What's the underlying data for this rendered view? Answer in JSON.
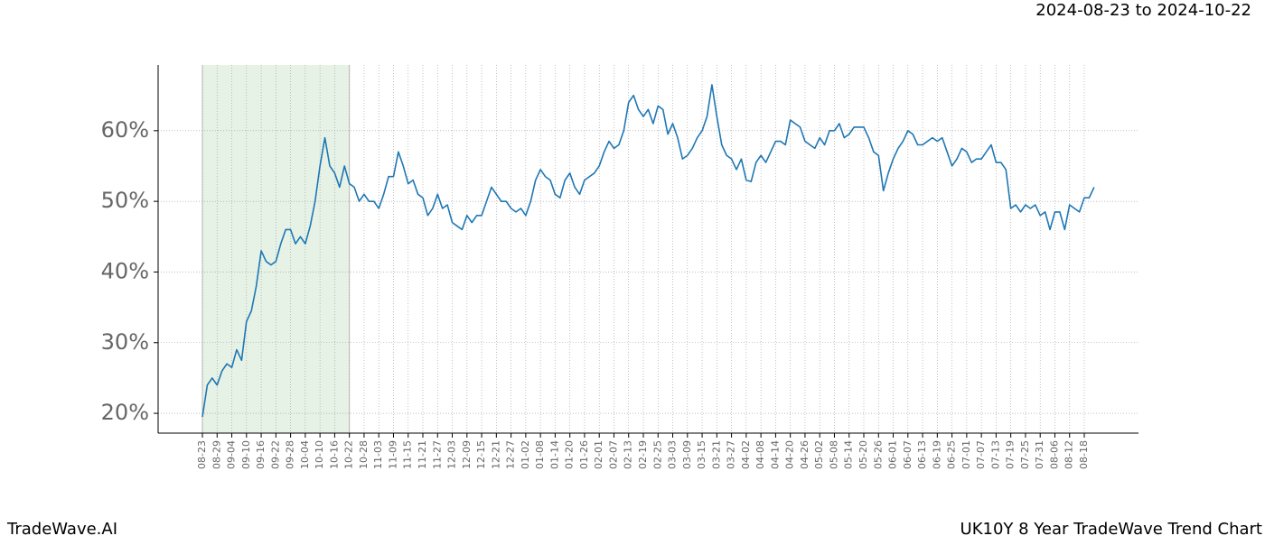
{
  "chart_data": {
    "type": "line",
    "title": "UK10Y 8 Year TradeWave Trend Chart",
    "date_range": "2024-08-23 to 2024-10-22",
    "brand": "TradeWave.AI",
    "color": "#1f77b4",
    "highlight_color": "#e6f2e6",
    "grid": true,
    "ylim": [
      17.2,
      69.3
    ],
    "yticks": [
      {
        "value": 20,
        "label": "20%"
      },
      {
        "value": 30,
        "label": "30%"
      },
      {
        "value": 40,
        "label": "40%"
      },
      {
        "value": 50,
        "label": "50%"
      },
      {
        "value": 60,
        "label": "60%"
      }
    ],
    "categories": [
      "08-23",
      null,
      null,
      "08-29",
      null,
      null,
      "09-04",
      null,
      null,
      "09-10",
      null,
      null,
      "09-16",
      null,
      null,
      "09-22",
      null,
      null,
      "09-28",
      null,
      null,
      "10-04",
      null,
      null,
      "10-10",
      null,
      null,
      "10-16",
      null,
      null,
      "10-22",
      null,
      null,
      "10-28",
      null,
      null,
      "11-03",
      null,
      null,
      "11-09",
      null,
      null,
      "11-15",
      null,
      null,
      "11-21",
      null,
      null,
      "11-27",
      null,
      null,
      "12-03",
      null,
      null,
      "12-09",
      null,
      null,
      "12-15",
      null,
      null,
      "12-21",
      null,
      null,
      "12-27",
      null,
      null,
      "01-02",
      null,
      null,
      "01-08",
      null,
      null,
      "01-14",
      null,
      null,
      "01-20",
      null,
      null,
      "01-26",
      null,
      null,
      "02-01",
      null,
      null,
      "02-07",
      null,
      null,
      "02-13",
      null,
      null,
      "02-19",
      null,
      null,
      "02-25",
      null,
      null,
      "03-03",
      null,
      null,
      "03-09",
      null,
      null,
      "03-15",
      null,
      null,
      "03-21",
      null,
      null,
      "03-27",
      null,
      null,
      "04-02",
      null,
      null,
      "04-08",
      null,
      null,
      "04-14",
      null,
      null,
      "04-20",
      null,
      null,
      "04-26",
      null,
      null,
      "05-02",
      null,
      null,
      "05-08",
      null,
      null,
      "05-14",
      null,
      null,
      "05-20",
      null,
      null,
      "05-26",
      null,
      null,
      "06-01",
      null,
      null,
      "06-07",
      null,
      null,
      "06-13",
      null,
      null,
      "06-19",
      null,
      null,
      "06-25",
      null,
      null,
      "07-01",
      null,
      null,
      "07-07",
      null,
      null,
      "07-13",
      null,
      null,
      "07-19",
      null,
      null,
      "07-25",
      null,
      null,
      "07-31",
      null,
      null,
      "08-06",
      null,
      null,
      "08-12",
      null,
      null,
      "08-18",
      null,
      null
    ],
    "values": [
      19.5,
      24,
      25,
      24,
      26,
      27,
      26.5,
      29,
      27.5,
      33,
      34.5,
      38,
      43,
      41.5,
      41,
      41.5,
      44,
      46,
      46,
      44,
      45,
      44,
      46.5,
      50,
      55,
      59,
      55,
      54,
      52,
      55,
      52.5,
      52,
      50,
      51,
      50,
      50,
      49,
      51,
      53.5,
      53.5,
      57,
      55,
      52.5,
      53,
      51,
      50.5,
      48,
      49,
      51,
      49,
      49.5,
      47,
      46.5,
      46,
      48,
      47,
      48,
      48,
      50,
      52,
      51,
      50,
      50,
      49,
      48.5,
      49,
      48,
      50,
      53,
      54.5,
      53.5,
      53,
      51,
      50.5,
      53,
      54,
      52,
      51,
      53,
      53.5,
      54,
      55,
      57,
      58.5,
      57.5,
      58,
      60,
      64,
      65,
      63,
      62,
      63,
      61,
      63.5,
      63,
      59.5,
      61,
      59,
      56,
      56.5,
      57.5,
      59,
      60,
      62,
      66.5,
      62,
      58,
      56.5,
      56,
      54.5,
      56,
      53,
      52.8,
      55.5,
      56.5,
      55.5,
      57,
      58.5,
      58.5,
      58,
      61.5,
      61,
      60.5,
      58.5,
      58,
      57.5,
      59,
      58,
      60,
      60,
      61,
      59,
      59.5,
      60.5,
      60.5,
      60.5,
      59,
      57,
      56.5,
      51.5,
      54,
      56,
      57.5,
      58.5,
      60,
      59.5,
      58,
      58,
      58.5,
      59,
      58.5,
      59,
      57,
      55,
      56,
      57.5,
      57,
      55.5,
      56,
      56,
      57,
      58,
      55.5,
      55.5,
      54.5,
      49,
      49.5,
      48.5,
      49.5,
      49,
      49.5,
      48,
      48.5,
      46,
      48.5,
      48.5,
      46,
      49.5,
      49,
      48.5,
      50.5,
      50.5,
      52
    ]
  }
}
